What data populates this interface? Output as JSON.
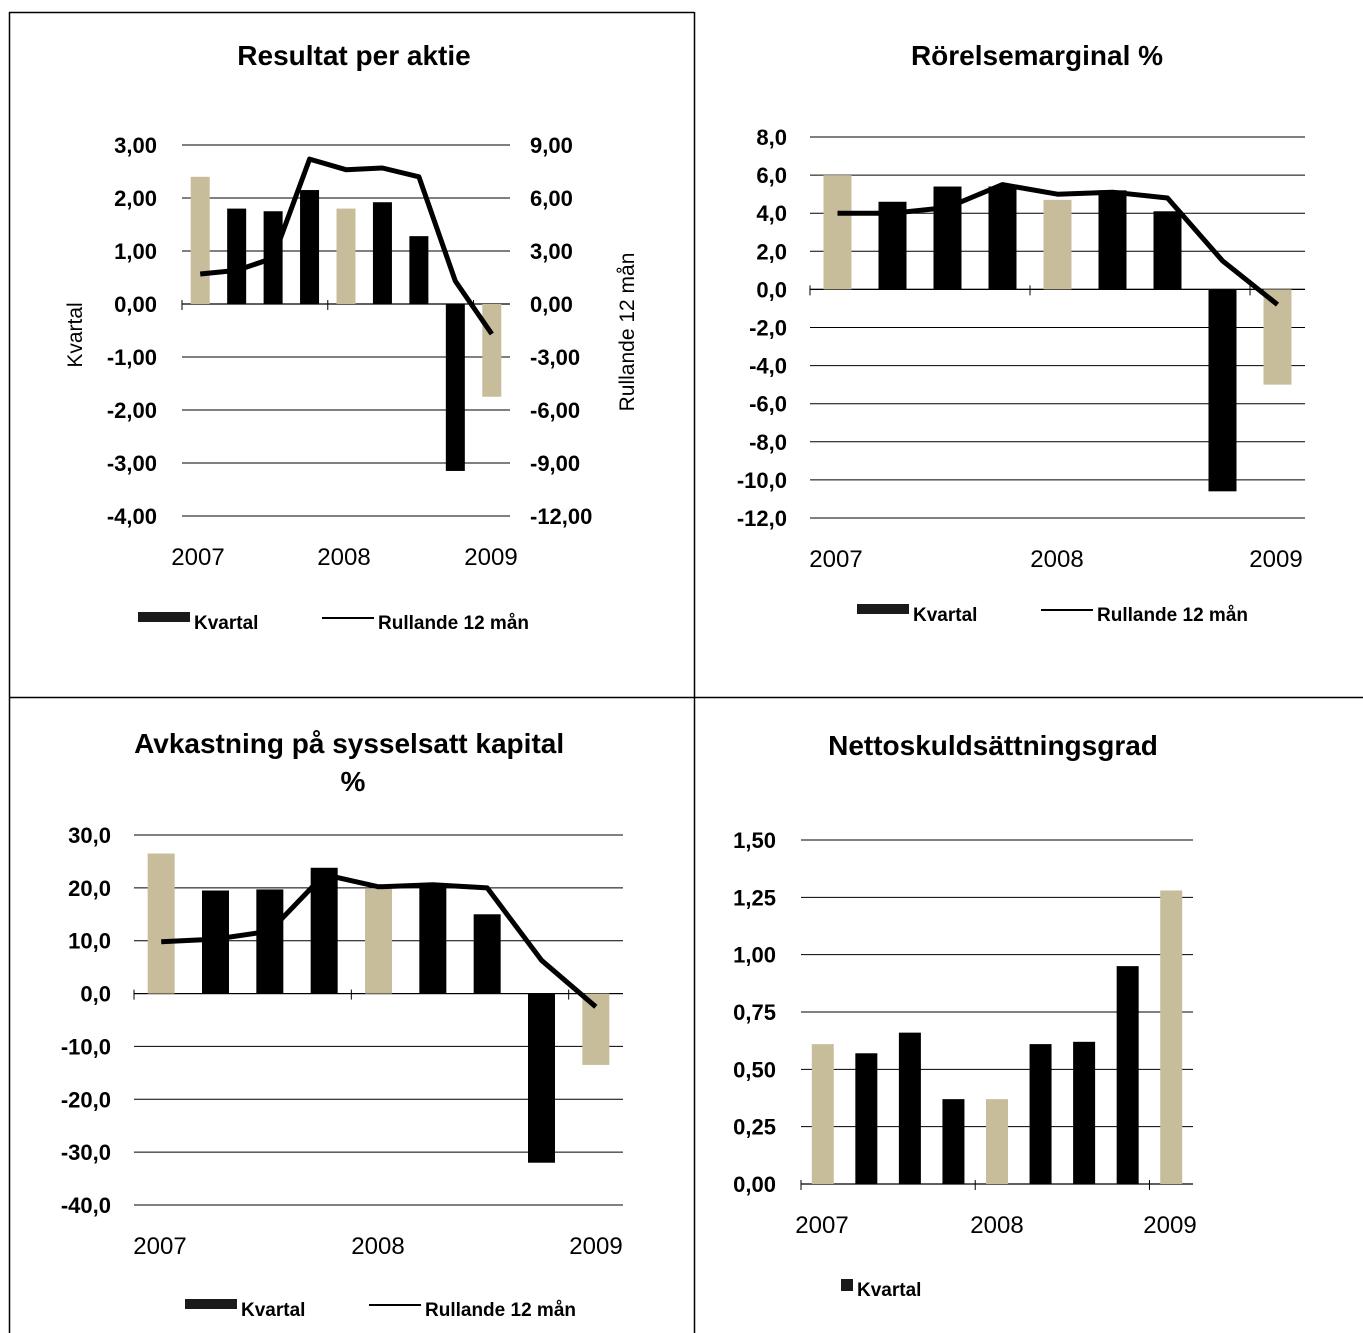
{
  "colors": {
    "dark": "#000000",
    "tan": "#c8bd9b",
    "grid": "#000000"
  },
  "chart_data": [
    {
      "type": "bar",
      "title": "Resultat per aktie",
      "ylabel": "Kvartal",
      "y2label": "Rullande 12 mån",
      "x_labels": [
        "2007",
        "2008",
        "2009"
      ],
      "y_ticks": [
        "3,00",
        "2,00",
        "1,00",
        "0,00",
        "-1,00",
        "-2,00",
        "-3,00",
        "-4,00"
      ],
      "y2_ticks": [
        "9,00",
        "6,00",
        "3,00",
        "0,00",
        "-3,00",
        "-6,00",
        "-9,00",
        "-12,00"
      ],
      "ylim": [
        -4,
        3
      ],
      "y2lim": [
        -12,
        9
      ],
      "grid": true,
      "legend": [
        {
          "label": "Kvartal",
          "kind": "bar"
        },
        {
          "label": "Rullande 12 mån",
          "kind": "line"
        }
      ],
      "series": [
        {
          "name": "Kvartal",
          "type": "bar",
          "values": [
            2.4,
            1.8,
            1.75,
            2.15,
            1.8,
            1.92,
            1.28,
            -3.15,
            -1.75
          ],
          "colors": [
            "tan",
            "dark",
            "dark",
            "dark",
            "tan",
            "dark",
            "dark",
            "dark",
            "tan"
          ]
        },
        {
          "name": "Rullande 12 mån",
          "type": "line",
          "axis": "right",
          "values": [
            1.7,
            1.9,
            2.6,
            8.2,
            7.6,
            7.7,
            7.2,
            1.3,
            -1.7
          ]
        }
      ]
    },
    {
      "type": "bar",
      "title": "Rörelsemarginal %",
      "x_labels": [
        "2007",
        "2008",
        "2009"
      ],
      "y_ticks": [
        "8,0",
        "6,0",
        "4,0",
        "2,0",
        "0,0",
        "-2,0",
        "-4,0",
        "-6,0",
        "-8,0",
        "-10,0",
        "-12,0"
      ],
      "ylim": [
        -12,
        8
      ],
      "grid": true,
      "legend": [
        {
          "label": "Kvartal",
          "kind": "bar"
        },
        {
          "label": "Rullande 12 mån",
          "kind": "line"
        }
      ],
      "series": [
        {
          "name": "Kvartal",
          "type": "bar",
          "values": [
            6.0,
            4.6,
            5.4,
            5.4,
            4.7,
            5.2,
            4.1,
            -10.6,
            -5.0
          ],
          "colors": [
            "tan",
            "dark",
            "dark",
            "dark",
            "tan",
            "dark",
            "dark",
            "dark",
            "tan"
          ]
        },
        {
          "name": "Rullande 12 mån",
          "type": "line",
          "values": [
            4.0,
            4.0,
            4.3,
            5.5,
            5.0,
            5.1,
            4.8,
            1.5,
            -0.8
          ]
        }
      ]
    },
    {
      "type": "bar",
      "title": "Avkastning på sysselsatt kapital %",
      "x_labels": [
        "2007",
        "2008",
        "2009"
      ],
      "y_ticks": [
        "30,0",
        "20,0",
        "10,0",
        "0,0",
        "-10,0",
        "-20,0",
        "-30,0",
        "-40,0"
      ],
      "ylim": [
        -40,
        30
      ],
      "grid": true,
      "legend": [
        {
          "label": "Kvartal",
          "kind": "bar"
        },
        {
          "label": "Rullande 12 mån",
          "kind": "line"
        }
      ],
      "series": [
        {
          "name": "Kvartal",
          "type": "bar",
          "values": [
            26.5,
            19.5,
            19.7,
            23.8,
            19.8,
            20.5,
            15.0,
            -32.0,
            -13.5
          ],
          "colors": [
            "tan",
            "dark",
            "dark",
            "dark",
            "tan",
            "dark",
            "dark",
            "dark",
            "tan"
          ]
        },
        {
          "name": "Rullande 12 mån",
          "type": "line",
          "values": [
            9.8,
            10.3,
            11.8,
            22.5,
            20.2,
            20.6,
            20.0,
            6.3,
            -2.5
          ]
        }
      ]
    },
    {
      "type": "bar",
      "title": "Nettoskuldsättningsgrad",
      "x_labels": [
        "2007",
        "2008",
        "2009"
      ],
      "y_ticks": [
        "1,50",
        "1,25",
        "1,00",
        "0,75",
        "0,50",
        "0,25",
        "0,00"
      ],
      "ylim": [
        0,
        1.5
      ],
      "grid": true,
      "legend": [
        {
          "label": "Kvartal",
          "kind": "bar"
        }
      ],
      "series": [
        {
          "name": "Kvartal",
          "type": "bar",
          "values": [
            0.61,
            0.57,
            0.66,
            0.37,
            0.37,
            0.61,
            0.62,
            0.95,
            1.28
          ],
          "colors": [
            "tan",
            "dark",
            "dark",
            "dark",
            "tan",
            "dark",
            "dark",
            "dark",
            "tan"
          ]
        }
      ]
    }
  ]
}
